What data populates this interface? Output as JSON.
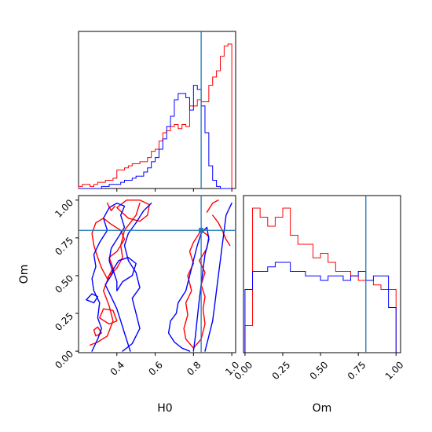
{
  "chart_data": {
    "type": "corner",
    "parameters": [
      "H0",
      "Om"
    ],
    "truths": {
      "H0": 0.84,
      "Om": 0.8
    },
    "colors": {
      "run_a": "#ff0000",
      "run_b": "#0000ff",
      "truth": "#1f77b4"
    },
    "axes": {
      "H0": {
        "range": [
          0.2,
          1.02
        ],
        "ticks": [
          0.4,
          0.6,
          0.8,
          1.0
        ],
        "tick_labels": [
          "0.4",
          "0.6",
          "0.8",
          "1.0"
        ],
        "label": "H0"
      },
      "Om": {
        "range": [
          -0.01,
          1.03
        ],
        "ticks": [
          0.0,
          0.25,
          0.5,
          0.75,
          1.0
        ],
        "tick_labels": [
          "0.00",
          "0.25",
          "0.50",
          "0.75",
          "1.00"
        ],
        "label": "Om"
      }
    },
    "panels": [
      {
        "id": "H0-hist",
        "type": "step-histogram",
        "x": "H0",
        "bin_edges": [
          0.2,
          0.22,
          0.24,
          0.26,
          0.28,
          0.3,
          0.32,
          0.34,
          0.36,
          0.38,
          0.4,
          0.42,
          0.44,
          0.46,
          0.48,
          0.5,
          0.52,
          0.54,
          0.56,
          0.58,
          0.6,
          0.62,
          0.64,
          0.66,
          0.68,
          0.7,
          0.72,
          0.74,
          0.76,
          0.78,
          0.8,
          0.82,
          0.84,
          0.86,
          0.88,
          0.9,
          0.92,
          0.94,
          0.96,
          0.98,
          1.0
        ],
        "series": [
          {
            "name": "run_a",
            "counts": [
              1,
              2,
              2,
              1,
              2,
              3,
              3,
              4,
              4,
              5,
              9,
              9,
              10,
              11,
              12,
              12,
              13,
              13,
              15,
              18,
              19,
              23,
              27,
              28,
              30,
              31,
              29,
              31,
              30,
              40,
              40,
              43,
              42,
              42,
              50,
              54,
              57,
              64,
              69,
              70
            ]
          },
          {
            "name": "run_b",
            "counts": [
              0,
              0,
              0,
              0,
              0,
              0,
              1,
              1,
              2,
              2,
              2,
              3,
              4,
              4,
              5,
              6,
              6,
              8,
              10,
              13,
              15,
              19,
              24,
              30,
              35,
              43,
              46,
              46,
              44,
              38,
              50,
              48,
              40,
              27,
              11,
              4,
              1,
              0,
              0,
              0
            ]
          }
        ]
      },
      {
        "id": "Om-hist",
        "type": "step-histogram",
        "x": "Om",
        "bin_edges": [
          0.0,
          0.05,
          0.1,
          0.15,
          0.2,
          0.25,
          0.3,
          0.35,
          0.4,
          0.45,
          0.5,
          0.55,
          0.6,
          0.65,
          0.7,
          0.75,
          0.8,
          0.85,
          0.9,
          0.95,
          1.0
        ],
        "series": [
          {
            "name": "run_a",
            "counts": [
              6,
              32,
              30,
              28,
              30,
              32,
              26,
              24,
              24,
              21,
              22,
              20,
              18,
              18,
              17,
              16,
              16,
              15,
              14,
              14
            ]
          },
          {
            "name": "run_b",
            "counts": [
              14,
              18,
              18,
              19,
              20,
              20,
              18,
              18,
              17,
              17,
              16,
              17,
              17,
              16,
              17,
              18,
              16,
              17,
              17,
              10
            ]
          }
        ]
      },
      {
        "id": "H0-Om-contour",
        "type": "contour",
        "x": "H0",
        "y": "Om",
        "series": [
          {
            "name": "run_a",
            "contours": [
              [
                [
                  0.26,
                  0.04
                ],
                [
                  0.3,
                  0.06
                ],
                [
                  0.35,
                  0.1
                ],
                [
                  0.38,
                  0.2
                ],
                [
                  0.36,
                  0.3
                ],
                [
                  0.33,
                  0.4
                ],
                [
                  0.36,
                  0.5
                ],
                [
                  0.4,
                  0.55
                ],
                [
                  0.43,
                  0.62
                ],
                [
                  0.42,
                  0.7
                ],
                [
                  0.44,
                  0.8
                ],
                [
                  0.47,
                  0.85
                ],
                [
                  0.5,
                  0.9
                ],
                [
                  0.52,
                  0.98
                ]
              ],
              [
                [
                  0.29,
                  0.85
                ],
                [
                  0.33,
                  0.88
                ],
                [
                  0.37,
                  0.84
                ],
                [
                  0.42,
                  0.8
                ],
                [
                  0.44,
                  0.74
                ],
                [
                  0.4,
                  0.66
                ],
                [
                  0.36,
                  0.62
                ],
                [
                  0.38,
                  0.55
                ],
                [
                  0.35,
                  0.48
                ],
                [
                  0.32,
                  0.55
                ],
                [
                  0.3,
                  0.62
                ],
                [
                  0.28,
                  0.7
                ],
                [
                  0.27,
                  0.78
                ],
                [
                  0.29,
                  0.85
                ]
              ],
              [
                [
                  0.4,
                  0.95
                ],
                [
                  0.46,
                  0.88
                ],
                [
                  0.52,
                  0.86
                ],
                [
                  0.56,
                  0.9
                ],
                [
                  0.57,
                  0.97
                ],
                [
                  0.52,
                  1.0
                ],
                [
                  0.45,
                  1.0
                ],
                [
                  0.4,
                  0.95
                ]
              ],
              [
                [
                  0.31,
                  0.22
                ],
                [
                  0.36,
                  0.18
                ],
                [
                  0.4,
                  0.2
                ],
                [
                  0.38,
                  0.27
                ],
                [
                  0.33,
                  0.28
                ],
                [
                  0.31,
                  0.22
                ]
              ],
              [
                [
                  0.28,
                  0.14
                ],
                [
                  0.3,
                  0.16
                ],
                [
                  0.32,
                  0.12
                ],
                [
                  0.29,
                  0.1
                ],
                [
                  0.28,
                  0.14
                ]
              ],
              [
                [
                  0.8,
                  0.02
                ],
                [
                  0.76,
                  0.08
                ],
                [
                  0.75,
                  0.15
                ],
                [
                  0.77,
                  0.24
                ],
                [
                  0.76,
                  0.32
                ],
                [
                  0.79,
                  0.4
                ],
                [
                  0.77,
                  0.5
                ],
                [
                  0.8,
                  0.58
                ],
                [
                  0.78,
                  0.66
                ],
                [
                  0.8,
                  0.72
                ],
                [
                  0.84,
                  0.8
                ],
                [
                  0.88,
                  0.76
                ],
                [
                  0.87,
                  0.68
                ],
                [
                  0.83,
                  0.6
                ],
                [
                  0.86,
                  0.52
                ],
                [
                  0.84,
                  0.44
                ],
                [
                  0.86,
                  0.36
                ],
                [
                  0.85,
                  0.28
                ],
                [
                  0.86,
                  0.18
                ],
                [
                  0.84,
                  0.08
                ],
                [
                  0.8,
                  0.02
                ]
              ],
              [
                [
                  0.9,
                  0.9
                ],
                [
                  0.93,
                  0.85
                ],
                [
                  0.95,
                  0.8
                ],
                [
                  0.97,
                  0.74
                ],
                [
                  0.99,
                  0.7
                ]
              ],
              [
                [
                  0.87,
                  0.92
                ],
                [
                  0.9,
                  0.98
                ],
                [
                  0.93,
                  1.0
                ]
              ],
              [
                [
                  0.35,
                  0.98
                ],
                [
                  0.37,
                  0.93
                ],
                [
                  0.39,
                  0.96
                ]
              ]
            ]
          },
          {
            "name": "run_b",
            "contours": [
              [
                [
                  0.27,
                  0.0
                ],
                [
                  0.3,
                  0.08
                ],
                [
                  0.32,
                  0.15
                ],
                [
                  0.3,
                  0.22
                ],
                [
                  0.31,
                  0.32
                ],
                [
                  0.28,
                  0.4
                ],
                [
                  0.27,
                  0.48
                ],
                [
                  0.29,
                  0.56
                ],
                [
                  0.28,
                  0.64
                ],
                [
                  0.31,
                  0.72
                ],
                [
                  0.35,
                  0.8
                ],
                [
                  0.33,
                  0.88
                ],
                [
                  0.36,
                  0.95
                ],
                [
                  0.4,
                  0.98
                ],
                [
                  0.44,
                  0.96
                ],
                [
                  0.42,
                  0.9
                ],
                [
                  0.44,
                  0.82
                ],
                [
                  0.4,
                  0.74
                ],
                [
                  0.37,
                  0.68
                ],
                [
                  0.36,
                  0.6
                ],
                [
                  0.38,
                  0.52
                ],
                [
                  0.34,
                  0.44
                ],
                [
                  0.37,
                  0.36
                ],
                [
                  0.4,
                  0.28
                ],
                [
                  0.42,
                  0.2
                ],
                [
                  0.44,
                  0.12
                ],
                [
                  0.46,
                  0.04
                ],
                [
                  0.47,
                  0.0
                ]
              ],
              [
                [
                  0.43,
                  0.0
                ],
                [
                  0.48,
                  0.05
                ],
                [
                  0.52,
                  0.15
                ],
                [
                  0.5,
                  0.25
                ],
                [
                  0.48,
                  0.35
                ],
                [
                  0.52,
                  0.42
                ],
                [
                  0.5,
                  0.52
                ],
                [
                  0.46,
                  0.6
                ],
                [
                  0.44,
                  0.7
                ],
                [
                  0.46,
                  0.78
                ],
                [
                  0.5,
                  0.85
                ],
                [
                  0.54,
                  0.93
                ],
                [
                  0.58,
                  0.98
                ]
              ],
              [
                [
                  0.4,
                  0.4
                ],
                [
                  0.43,
                  0.46
                ],
                [
                  0.48,
                  0.5
                ],
                [
                  0.5,
                  0.58
                ],
                [
                  0.46,
                  0.62
                ],
                [
                  0.41,
                  0.6
                ],
                [
                  0.38,
                  0.54
                ],
                [
                  0.4,
                  0.46
                ],
                [
                  0.4,
                  0.4
                ]
              ],
              [
                [
                  0.78,
                  0.0
                ],
                [
                  0.74,
                  0.02
                ],
                [
                  0.7,
                  0.06
                ],
                [
                  0.67,
                  0.12
                ],
                [
                  0.68,
                  0.2
                ],
                [
                  0.71,
                  0.25
                ],
                [
                  0.72,
                  0.32
                ],
                [
                  0.76,
                  0.4
                ],
                [
                  0.78,
                  0.5
                ],
                [
                  0.8,
                  0.6
                ],
                [
                  0.82,
                  0.7
                ],
                [
                  0.84,
                  0.78
                ],
                [
                  0.87,
                  0.82
                ],
                [
                  0.88,
                  0.74
                ],
                [
                  0.86,
                  0.64
                ],
                [
                  0.85,
                  0.54
                ],
                [
                  0.84,
                  0.44
                ],
                [
                  0.83,
                  0.34
                ],
                [
                  0.82,
                  0.22
                ],
                [
                  0.81,
                  0.1
                ],
                [
                  0.8,
                  0.0
                ]
              ],
              [
                [
                  0.86,
                  0.0
                ],
                [
                  0.88,
                  0.1
                ],
                [
                  0.9,
                  0.2
                ],
                [
                  0.91,
                  0.3
                ],
                [
                  0.92,
                  0.4
                ],
                [
                  0.93,
                  0.5
                ],
                [
                  0.94,
                  0.6
                ],
                [
                  0.95,
                  0.7
                ],
                [
                  0.96,
                  0.8
                ],
                [
                  0.97,
                  0.9
                ],
                [
                  1.0,
                  0.98
                ]
              ],
              [
                [
                  0.24,
                  0.34
                ],
                [
                  0.27,
                  0.38
                ],
                [
                  0.3,
                  0.36
                ],
                [
                  0.28,
                  0.32
                ],
                [
                  0.24,
                  0.34
                ]
              ]
            ]
          }
        ]
      }
    ]
  }
}
